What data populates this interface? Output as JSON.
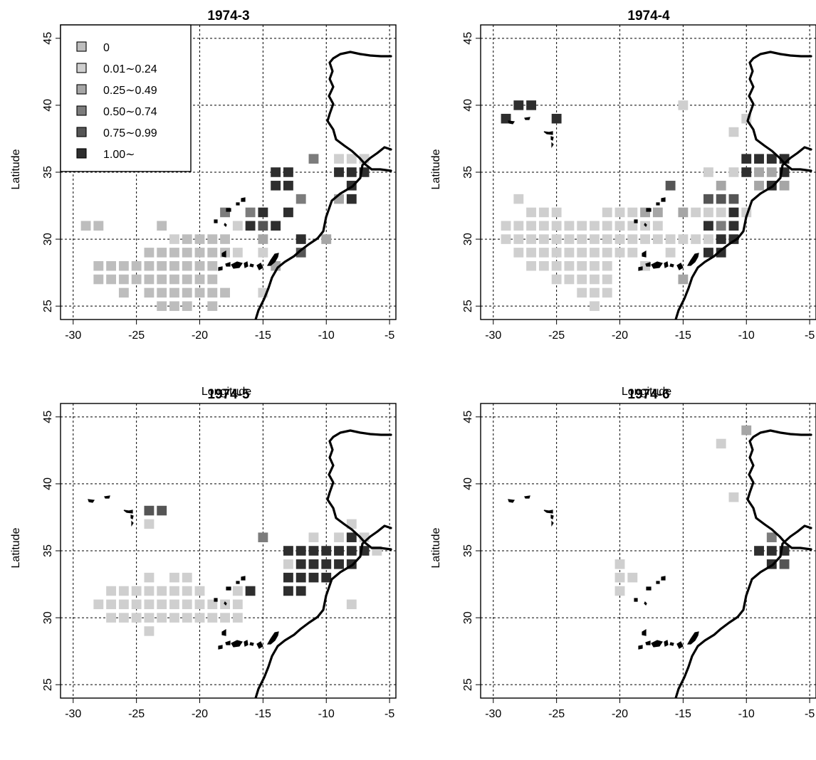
{
  "figure": {
    "xlabel": "Longitude",
    "ylabel": "Latitude"
  },
  "legend": {
    "entries": [
      {
        "label": "0",
        "color": "#bdbdbd"
      },
      {
        "label": "0.01∼0.24",
        "color": "#cfcfcf"
      },
      {
        "label": "0.25∼0.49",
        "color": "#a6a6a6"
      },
      {
        "label": "0.50∼0.74",
        "color": "#7c7c7c"
      },
      {
        "label": "0.75∼0.99",
        "color": "#555555"
      },
      {
        "label": "1.00∼",
        "color": "#2e2e2e"
      }
    ]
  },
  "chart_data": [
    {
      "type": "heatmap",
      "title": "1974-3",
      "xlabel": "Longitude",
      "ylabel": "Latitude",
      "xlim": [
        -31,
        -4.5
      ],
      "ylim": [
        24,
        46
      ],
      "xticks": [
        -30,
        -25,
        -20,
        -15,
        -10,
        -5
      ],
      "yticks": [
        25,
        30,
        35,
        40,
        45
      ],
      "grid": true,
      "legend_position": "top-left",
      "cells": [
        [
          -29,
          31,
          0
        ],
        [
          -28,
          31,
          0
        ],
        [
          -28,
          28,
          0
        ],
        [
          -27,
          28,
          0
        ],
        [
          -26,
          28,
          0
        ],
        [
          -25,
          28,
          0
        ],
        [
          -24,
          28,
          0
        ],
        [
          -23,
          28,
          0
        ],
        [
          -22,
          28,
          0
        ],
        [
          -21,
          28,
          0
        ],
        [
          -20,
          28,
          0
        ],
        [
          -19,
          28,
          0
        ],
        [
          -28,
          27,
          0
        ],
        [
          -27,
          27,
          0
        ],
        [
          -26,
          27,
          0
        ],
        [
          -25,
          27,
          0
        ],
        [
          -24,
          27,
          0
        ],
        [
          -23,
          27,
          0
        ],
        [
          -22,
          27,
          0
        ],
        [
          -21,
          27,
          0
        ],
        [
          -20,
          27,
          0
        ],
        [
          -19,
          27,
          0
        ],
        [
          -26,
          26,
          0
        ],
        [
          -24,
          26,
          0
        ],
        [
          -23,
          26,
          0
        ],
        [
          -22,
          26,
          0
        ],
        [
          -21,
          26,
          0
        ],
        [
          -20,
          26,
          0
        ],
        [
          -19,
          26,
          0
        ],
        [
          -18,
          26,
          0
        ],
        [
          -23,
          25,
          0
        ],
        [
          -22,
          25,
          0
        ],
        [
          -21,
          25,
          0
        ],
        [
          -19,
          25,
          0
        ],
        [
          -24,
          29,
          0
        ],
        [
          -23,
          29,
          0
        ],
        [
          -22,
          29,
          0
        ],
        [
          -21,
          29,
          0
        ],
        [
          -20,
          29,
          0
        ],
        [
          -19,
          29,
          0
        ],
        [
          -18,
          29,
          0
        ],
        [
          -21,
          30,
          0
        ],
        [
          -20,
          30,
          0
        ],
        [
          -19,
          30,
          0
        ],
        [
          -18,
          30,
          0
        ],
        [
          -23,
          31,
          0
        ],
        [
          -22,
          30,
          1
        ],
        [
          -17,
          29,
          1
        ],
        [
          -17,
          31,
          1
        ],
        [
          -15,
          29,
          1
        ],
        [
          -15,
          26,
          1
        ],
        [
          -9,
          36,
          1
        ],
        [
          -8,
          36,
          1
        ],
        [
          -7,
          36,
          1
        ],
        [
          -15,
          30,
          2
        ],
        [
          -14,
          28,
          2
        ],
        [
          -10,
          30,
          2
        ],
        [
          -9,
          33,
          2
        ],
        [
          -18,
          32,
          3
        ],
        [
          -16,
          32,
          3
        ],
        [
          -12,
          33,
          3
        ],
        [
          -11,
          36,
          3
        ],
        [
          -15,
          31,
          4
        ],
        [
          -12,
          29,
          4
        ],
        [
          -14,
          35,
          5
        ],
        [
          -13,
          35,
          5
        ],
        [
          -14,
          34,
          5
        ],
        [
          -13,
          34,
          5
        ],
        [
          -15,
          32,
          5
        ],
        [
          -13,
          32,
          5
        ],
        [
          -16,
          31,
          5
        ],
        [
          -14,
          31,
          5
        ],
        [
          -12,
          30,
          5
        ],
        [
          -9,
          35,
          5
        ],
        [
          -8,
          35,
          5
        ],
        [
          -7,
          35,
          5
        ],
        [
          -8,
          34,
          5
        ],
        [
          -8,
          33,
          5
        ]
      ]
    },
    {
      "type": "heatmap",
      "title": "1974-4",
      "xlabel": "Longitude",
      "ylabel": "Latitude",
      "xlim": [
        -31,
        -4.5
      ],
      "ylim": [
        24,
        46
      ],
      "xticks": [
        -30,
        -25,
        -20,
        -15,
        -10,
        -5
      ],
      "yticks": [
        25,
        30,
        35,
        40,
        45
      ],
      "grid": true,
      "cells": [
        [
          -29,
          39,
          5
        ],
        [
          -28,
          40,
          5
        ],
        [
          -27,
          40,
          5
        ],
        [
          -25,
          39,
          5
        ],
        [
          -15,
          40,
          1
        ],
        [
          -10,
          39,
          1
        ],
        [
          -11,
          38,
          1
        ],
        [
          -28,
          33,
          1
        ],
        [
          -27,
          32,
          1
        ],
        [
          -26,
          32,
          1
        ],
        [
          -25,
          32,
          1
        ],
        [
          -21,
          32,
          1
        ],
        [
          -20,
          32,
          1
        ],
        [
          -19,
          32,
          1
        ],
        [
          -29,
          31,
          1
        ],
        [
          -28,
          31,
          1
        ],
        [
          -27,
          31,
          1
        ],
        [
          -26,
          31,
          1
        ],
        [
          -25,
          31,
          1
        ],
        [
          -24,
          31,
          1
        ],
        [
          -23,
          31,
          1
        ],
        [
          -22,
          31,
          1
        ],
        [
          -21,
          31,
          1
        ],
        [
          -20,
          31,
          1
        ],
        [
          -19,
          31,
          1
        ],
        [
          -18,
          31,
          1
        ],
        [
          -17,
          31,
          1
        ],
        [
          -29,
          30,
          1
        ],
        [
          -28,
          30,
          1
        ],
        [
          -27,
          30,
          1
        ],
        [
          -26,
          30,
          1
        ],
        [
          -25,
          30,
          1
        ],
        [
          -24,
          30,
          1
        ],
        [
          -23,
          30,
          1
        ],
        [
          -22,
          30,
          1
        ],
        [
          -21,
          30,
          1
        ],
        [
          -20,
          30,
          1
        ],
        [
          -19,
          30,
          1
        ],
        [
          -18,
          30,
          1
        ],
        [
          -17,
          30,
          1
        ],
        [
          -16,
          30,
          1
        ],
        [
          -15,
          30,
          1
        ],
        [
          -14,
          30,
          1
        ],
        [
          -28,
          29,
          1
        ],
        [
          -27,
          29,
          1
        ],
        [
          -26,
          29,
          1
        ],
        [
          -25,
          29,
          1
        ],
        [
          -24,
          29,
          1
        ],
        [
          -23,
          29,
          1
        ],
        [
          -22,
          29,
          1
        ],
        [
          -21,
          29,
          1
        ],
        [
          -20,
          29,
          1
        ],
        [
          -19,
          29,
          1
        ],
        [
          -16,
          29,
          1
        ],
        [
          -27,
          28,
          1
        ],
        [
          -26,
          28,
          1
        ],
        [
          -25,
          28,
          1
        ],
        [
          -24,
          28,
          1
        ],
        [
          -23,
          28,
          1
        ],
        [
          -22,
          28,
          1
        ],
        [
          -21,
          28,
          1
        ],
        [
          -18,
          28,
          1
        ],
        [
          -25,
          27,
          1
        ],
        [
          -24,
          27,
          1
        ],
        [
          -23,
          27,
          1
        ],
        [
          -22,
          27,
          1
        ],
        [
          -21,
          27,
          1
        ],
        [
          -23,
          26,
          1
        ],
        [
          -22,
          26,
          1
        ],
        [
          -21,
          26,
          1
        ],
        [
          -22,
          25,
          1
        ],
        [
          -13,
          35,
          1
        ],
        [
          -11,
          35,
          1
        ],
        [
          -13,
          32,
          1
        ],
        [
          -12,
          32,
          1
        ],
        [
          -13,
          30,
          1
        ],
        [
          -10,
          32,
          1
        ],
        [
          -14,
          32,
          1
        ],
        [
          -18,
          32,
          2
        ],
        [
          -17,
          32,
          2
        ],
        [
          -15,
          32,
          2
        ],
        [
          -12,
          34,
          2
        ],
        [
          -9,
          35,
          2
        ],
        [
          -8,
          35,
          2
        ],
        [
          -9,
          34,
          2
        ],
        [
          -7,
          34,
          2
        ],
        [
          -15,
          27,
          2
        ],
        [
          -12,
          31,
          3
        ],
        [
          -12,
          33,
          4
        ],
        [
          -16,
          34,
          4
        ],
        [
          -11,
          33,
          4
        ],
        [
          -13,
          33,
          4
        ],
        [
          -10,
          36,
          5
        ],
        [
          -9,
          36,
          5
        ],
        [
          -8,
          36,
          5
        ],
        [
          -7,
          36,
          5
        ],
        [
          -10,
          35,
          5
        ],
        [
          -7,
          35,
          5
        ],
        [
          -8,
          34,
          5
        ],
        [
          -11,
          32,
          5
        ],
        [
          -13,
          31,
          5
        ],
        [
          -11,
          31,
          5
        ],
        [
          -11,
          30,
          5
        ],
        [
          -12,
          30,
          5
        ],
        [
          -13,
          29,
          5
        ],
        [
          -12,
          29,
          5
        ]
      ]
    },
    {
      "type": "heatmap",
      "title": "1974-5",
      "xlabel": "Longitude",
      "ylabel": "Latitude",
      "xlim": [
        -31,
        -4.5
      ],
      "ylim": [
        24,
        46
      ],
      "xticks": [
        -30,
        -25,
        -20,
        -15,
        -10,
        -5
      ],
      "yticks": [
        25,
        30,
        35,
        40,
        45
      ],
      "grid": true,
      "cells": [
        [
          -24,
          38,
          4
        ],
        [
          -23,
          38,
          4
        ],
        [
          -24,
          37,
          1
        ],
        [
          -15,
          36,
          3
        ],
        [
          -16,
          32,
          5
        ],
        [
          -17,
          32,
          1
        ],
        [
          -27,
          32,
          1
        ],
        [
          -26,
          32,
          1
        ],
        [
          -25,
          32,
          1
        ],
        [
          -24,
          32,
          1
        ],
        [
          -23,
          32,
          1
        ],
        [
          -22,
          32,
          1
        ],
        [
          -21,
          32,
          1
        ],
        [
          -20,
          32,
          1
        ],
        [
          -24,
          33,
          1
        ],
        [
          -22,
          33,
          1
        ],
        [
          -21,
          33,
          1
        ],
        [
          -28,
          31,
          1
        ],
        [
          -27,
          31,
          1
        ],
        [
          -26,
          31,
          1
        ],
        [
          -25,
          31,
          1
        ],
        [
          -24,
          31,
          1
        ],
        [
          -23,
          31,
          1
        ],
        [
          -22,
          31,
          1
        ],
        [
          -21,
          31,
          1
        ],
        [
          -20,
          31,
          1
        ],
        [
          -19,
          31,
          1
        ],
        [
          -18,
          31,
          1
        ],
        [
          -17,
          31,
          1
        ],
        [
          -27,
          30,
          1
        ],
        [
          -26,
          30,
          1
        ],
        [
          -25,
          30,
          1
        ],
        [
          -24,
          30,
          1
        ],
        [
          -23,
          30,
          1
        ],
        [
          -22,
          30,
          1
        ],
        [
          -21,
          30,
          1
        ],
        [
          -20,
          30,
          1
        ],
        [
          -19,
          30,
          1
        ],
        [
          -18,
          30,
          1
        ],
        [
          -17,
          30,
          1
        ],
        [
          -24,
          29,
          1
        ],
        [
          -11,
          36,
          1
        ],
        [
          -9,
          36,
          1
        ],
        [
          -8,
          37,
          1
        ],
        [
          -7,
          36,
          1
        ],
        [
          -6,
          35,
          1
        ],
        [
          -8,
          31,
          1
        ],
        [
          -13,
          34,
          1
        ],
        [
          -8,
          36,
          5
        ],
        [
          -13,
          35,
          5
        ],
        [
          -12,
          35,
          5
        ],
        [
          -11,
          35,
          5
        ],
        [
          -10,
          35,
          5
        ],
        [
          -9,
          35,
          5
        ],
        [
          -8,
          35,
          5
        ],
        [
          -7,
          35,
          5
        ],
        [
          -12,
          34,
          5
        ],
        [
          -11,
          34,
          5
        ],
        [
          -10,
          34,
          5
        ],
        [
          -9,
          34,
          5
        ],
        [
          -8,
          34,
          5
        ],
        [
          -13,
          33,
          5
        ],
        [
          -12,
          33,
          5
        ],
        [
          -11,
          33,
          5
        ],
        [
          -10,
          33,
          5
        ],
        [
          -13,
          32,
          5
        ],
        [
          -12,
          32,
          5
        ]
      ]
    },
    {
      "type": "heatmap",
      "title": "1974-6",
      "xlabel": "Longitude",
      "ylabel": "Latitude",
      "xlim": [
        -31,
        -4.5
      ],
      "ylim": [
        24,
        46
      ],
      "xticks": [
        -30,
        -25,
        -20,
        -15,
        -10,
        -5
      ],
      "yticks": [
        25,
        30,
        35,
        40,
        45
      ],
      "grid": true,
      "cells": [
        [
          -10,
          44,
          2
        ],
        [
          -12,
          43,
          1
        ],
        [
          -11,
          39,
          1
        ],
        [
          -20,
          34,
          1
        ],
        [
          -20,
          33,
          1
        ],
        [
          -19,
          33,
          1
        ],
        [
          -20,
          32,
          1
        ],
        [
          -8,
          36,
          3
        ],
        [
          -9,
          35,
          5
        ],
        [
          -8,
          35,
          5
        ],
        [
          -7,
          35,
          5
        ],
        [
          -8,
          34,
          5
        ],
        [
          -7,
          34,
          4
        ]
      ]
    }
  ]
}
